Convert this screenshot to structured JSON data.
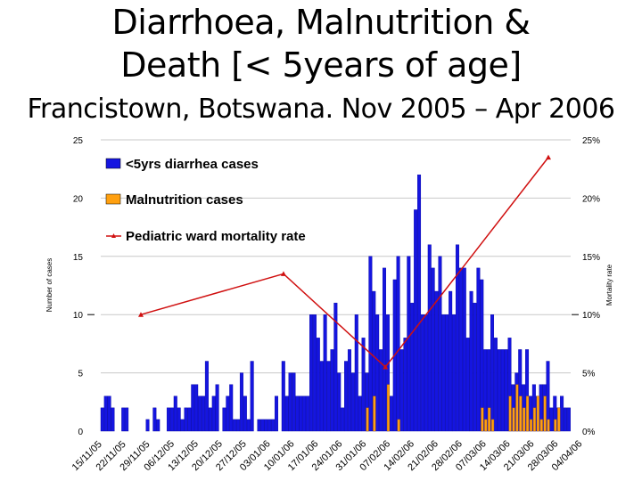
{
  "header": {
    "line1": "Diarrhoea, Malnutrition &",
    "line2": "Death [< 5years of age]",
    "line3": "Francistown, Botswana.  Nov 2005 – Apr 2006"
  },
  "chart_data": {
    "type": "bar",
    "title": "Diarrhoea, Malnutrition & Death [< 5years of age]",
    "subtitle": "Francistown, Botswana.  Nov 2005 – Apr 2006",
    "ylabel": "Number of cases",
    "y2label": "Mortality rate",
    "ylim": [
      0,
      25
    ],
    "y2lim": [
      0,
      0.25
    ],
    "yticks": [
      "0",
      "5",
      "10",
      "15",
      "20",
      "25"
    ],
    "y2ticks": [
      "0%",
      "5%",
      "10%",
      "15%",
      "20%",
      "25%"
    ],
    "xticks": [
      "15/11/05",
      "22/11/05",
      "29/11/05",
      "06/12/05",
      "13/12/05",
      "20/12/05",
      "27/12/05",
      "03/01/06",
      "10/01/06",
      "17/01/06",
      "24/01/06",
      "31/01/06",
      "07/02/06",
      "14/02/06",
      "21/02/06",
      "28/02/06",
      "07/03/06",
      "14/03/06",
      "21/03/06",
      "28/03/06",
      "04/04/06"
    ],
    "legend": {
      "position": "top-left"
    },
    "colors": {
      "diarrhea": "#1515e0",
      "malnutrition": "#ffa010",
      "mortality": "#d01010"
    },
    "series": [
      {
        "name": "<5yrs diarrhea cases",
        "type": "bar",
        "values": [
          2,
          3,
          3,
          2,
          0,
          0,
          2,
          2,
          0,
          0,
          0,
          0,
          0,
          1,
          0,
          2,
          1,
          0,
          0,
          2,
          2,
          3,
          2,
          1,
          2,
          2,
          4,
          4,
          3,
          3,
          6,
          2,
          3,
          4,
          0,
          2,
          3,
          4,
          1,
          1,
          5,
          3,
          1,
          6,
          0,
          1,
          1,
          1,
          1,
          1,
          3,
          0,
          6,
          3,
          5,
          5,
          3,
          3,
          3,
          3,
          10,
          10,
          8,
          6,
          10,
          6,
          7,
          11,
          5,
          2,
          6,
          7,
          5,
          10,
          3,
          8,
          5,
          15,
          12,
          10,
          7,
          14,
          10,
          3,
          13,
          15,
          7,
          8,
          15,
          11,
          19,
          22,
          10,
          10,
          16,
          14,
          12,
          15,
          10,
          10,
          12,
          10,
          16,
          14,
          14,
          8,
          12,
          11,
          14,
          13,
          7,
          7,
          10,
          8,
          7,
          7,
          7,
          8,
          4,
          5,
          7,
          4,
          7,
          3,
          4,
          3,
          4,
          4,
          6,
          2,
          3,
          2,
          3,
          2,
          2
        ]
      },
      {
        "name": "Malnutrition cases",
        "type": "bar",
        "values": [
          0,
          0,
          0,
          0,
          0,
          0,
          0,
          0,
          0,
          0,
          0,
          0,
          0,
          0,
          0,
          0,
          0,
          0,
          0,
          0,
          0,
          0,
          0,
          0,
          0,
          0,
          0,
          0,
          0,
          0,
          0,
          0,
          0,
          0,
          0,
          0,
          0,
          0,
          0,
          0,
          0,
          0,
          0,
          0,
          0,
          0,
          0,
          0,
          0,
          0,
          0,
          0,
          0,
          0,
          0,
          0,
          0,
          0,
          0,
          0,
          0,
          0,
          0,
          0,
          0,
          0,
          0,
          0,
          0,
          0,
          0,
          0,
          0,
          0,
          0,
          0,
          2,
          0,
          3,
          0,
          0,
          0,
          4,
          0,
          0,
          1,
          0,
          0,
          0,
          0,
          0,
          0,
          0,
          0,
          0,
          0,
          0,
          0,
          0,
          0,
          0,
          0,
          0,
          0,
          0,
          0,
          0,
          0,
          0,
          2,
          1,
          2,
          1,
          0,
          0,
          0,
          0,
          3,
          2,
          4,
          3,
          2,
          3,
          1,
          2,
          3,
          1,
          3,
          1,
          0,
          1,
          2,
          0,
          0,
          0
        ]
      },
      {
        "name": "Pediatric ward mortality rate",
        "type": "line",
        "points": [
          {
            "x": "15/11/05",
            "value": 0.1
          },
          {
            "x": "03/01/06",
            "value": 0.135
          },
          {
            "x": "07/02/06",
            "value": 0.055
          },
          {
            "x": "04/04/06",
            "value": 0.235
          }
        ]
      }
    ]
  }
}
